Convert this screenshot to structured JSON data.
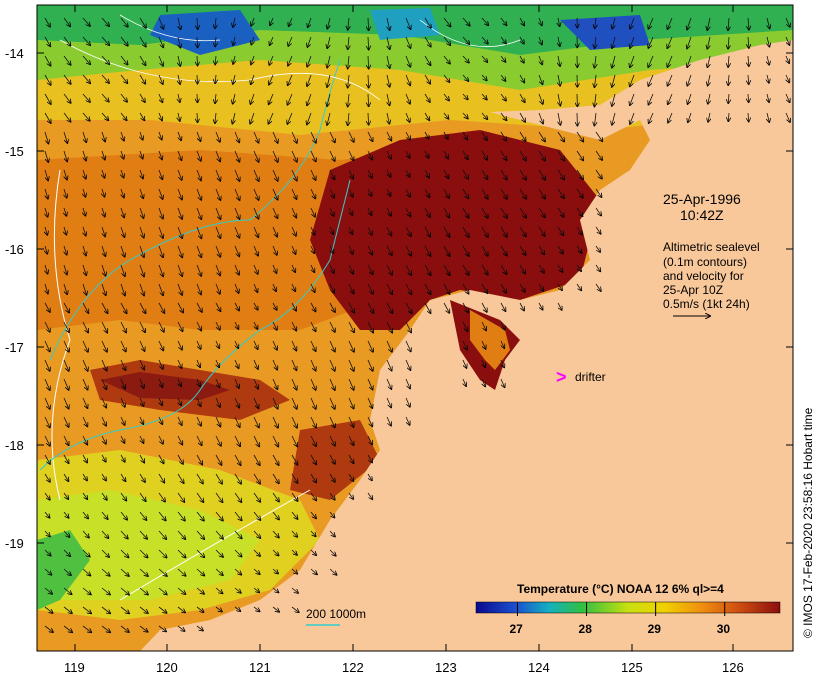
{
  "map": {
    "date": "25-Apr-1996",
    "time": "10:42Z",
    "altimetry_note": [
      "Altimetric sealevel",
      "(0.1m contours)",
      "and velocity for",
      "25-Apr 10Z",
      "0.5m/s (1kt 24h)"
    ],
    "drifter_label": "drifter",
    "depth_label": "200  1000m",
    "credit": "© IMOS 17-Feb-2020 23:58:16 Hobart time",
    "lat_ticks": [
      "-14",
      "-15",
      "-16",
      "-17",
      "-18",
      "-19"
    ],
    "lon_ticks": [
      "119",
      "120",
      "121",
      "122",
      "123",
      "124",
      "125",
      "126"
    ],
    "colorbar": {
      "title": "Temperature (°C) NOAA 12 6% ql>=4",
      "ticks": [
        "27",
        "28",
        "29",
        "30"
      ],
      "range": [
        26.4,
        30.8
      ]
    },
    "colors": {
      "land": "#f9c89a",
      "warm": "#8b0e0e",
      "orange": "#e88c10",
      "yellow": "#e6e600",
      "green": "#35c23a",
      "blue": "#0a2aa0",
      "drifter": "#ff00ff",
      "isobath_200": "#ffffff",
      "isobath_1000": "#33cccc"
    }
  }
}
